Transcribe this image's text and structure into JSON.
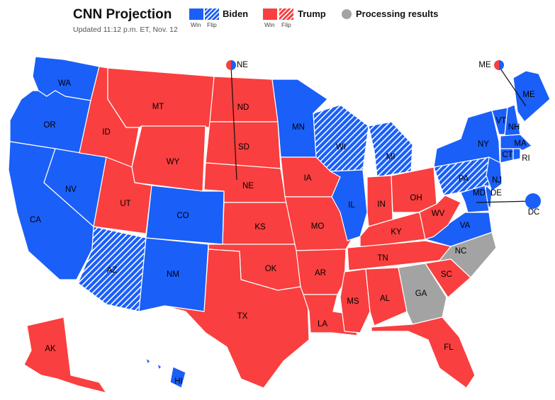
{
  "header": {
    "title": "CNN Projection",
    "updated": "Updated 11:12 p.m. ET, Nov. 12"
  },
  "legend": {
    "biden": {
      "label": "Biden",
      "win": "Win",
      "flip": "Flip",
      "color": "#1a5ff7"
    },
    "trump": {
      "label": "Trump",
      "win": "Win",
      "flip": "Flip",
      "color": "#f93f3f"
    },
    "processing": {
      "label": "Processing results",
      "color": "#a3a3a3"
    }
  },
  "colors": {
    "biden": "#1a5ff7",
    "trump": "#f93f3f",
    "processing": "#a3a3a3"
  },
  "states": [
    {
      "abbr": "WA",
      "result": "biden"
    },
    {
      "abbr": "OR",
      "result": "biden"
    },
    {
      "abbr": "CA",
      "result": "biden"
    },
    {
      "abbr": "NV",
      "result": "biden"
    },
    {
      "abbr": "ID",
      "result": "trump"
    },
    {
      "abbr": "MT",
      "result": "trump"
    },
    {
      "abbr": "WY",
      "result": "trump"
    },
    {
      "abbr": "UT",
      "result": "trump"
    },
    {
      "abbr": "CO",
      "result": "biden"
    },
    {
      "abbr": "AZ",
      "result": "biden-flip"
    },
    {
      "abbr": "NM",
      "result": "biden"
    },
    {
      "abbr": "ND",
      "result": "trump"
    },
    {
      "abbr": "SD",
      "result": "trump"
    },
    {
      "abbr": "NE",
      "result": "trump"
    },
    {
      "abbr": "KS",
      "result": "trump"
    },
    {
      "abbr": "OK",
      "result": "trump"
    },
    {
      "abbr": "TX",
      "result": "trump"
    },
    {
      "abbr": "MN",
      "result": "biden"
    },
    {
      "abbr": "IA",
      "result": "trump"
    },
    {
      "abbr": "MO",
      "result": "trump"
    },
    {
      "abbr": "AR",
      "result": "trump"
    },
    {
      "abbr": "LA",
      "result": "trump"
    },
    {
      "abbr": "WI",
      "result": "biden-flip"
    },
    {
      "abbr": "IL",
      "result": "biden"
    },
    {
      "abbr": "MI",
      "result": "biden-flip"
    },
    {
      "abbr": "IN",
      "result": "trump"
    },
    {
      "abbr": "OH",
      "result": "trump"
    },
    {
      "abbr": "KY",
      "result": "trump"
    },
    {
      "abbr": "TN",
      "result": "trump"
    },
    {
      "abbr": "MS",
      "result": "trump"
    },
    {
      "abbr": "AL",
      "result": "trump"
    },
    {
      "abbr": "GA",
      "result": "processing"
    },
    {
      "abbr": "FL",
      "result": "trump"
    },
    {
      "abbr": "SC",
      "result": "trump"
    },
    {
      "abbr": "NC",
      "result": "processing"
    },
    {
      "abbr": "VA",
      "result": "biden"
    },
    {
      "abbr": "WV",
      "result": "trump"
    },
    {
      "abbr": "PA",
      "result": "biden-flip"
    },
    {
      "abbr": "NY",
      "result": "biden"
    },
    {
      "abbr": "VT",
      "result": "biden"
    },
    {
      "abbr": "NH",
      "result": "biden"
    },
    {
      "abbr": "ME",
      "result": "biden"
    },
    {
      "abbr": "MA",
      "result": "biden"
    },
    {
      "abbr": "CT",
      "result": "biden"
    },
    {
      "abbr": "RI",
      "result": "biden"
    },
    {
      "abbr": "NJ",
      "result": "biden"
    },
    {
      "abbr": "DE",
      "result": "biden"
    },
    {
      "abbr": "MD",
      "result": "biden"
    },
    {
      "abbr": "DC",
      "result": "biden"
    },
    {
      "abbr": "AK",
      "result": "trump"
    },
    {
      "abbr": "HI",
      "result": "biden"
    }
  ],
  "split_states": [
    {
      "abbr": "NE",
      "result": "split"
    },
    {
      "abbr": "ME",
      "result": "split"
    }
  ]
}
